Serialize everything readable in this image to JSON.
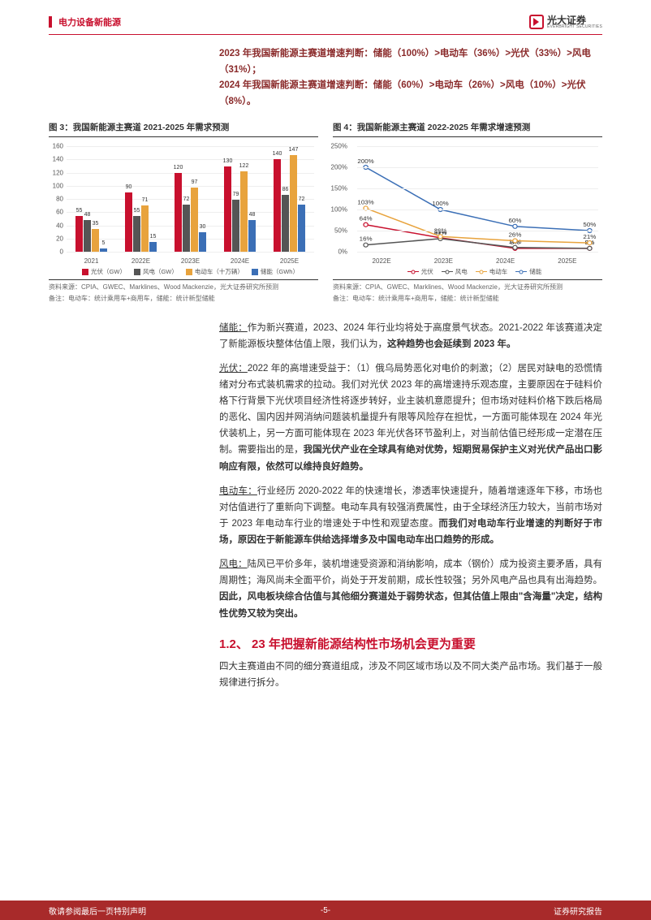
{
  "header": {
    "category": "电力设备新能源",
    "brand_cn": "光大证券",
    "brand_en": "EVERBRIGHT SECURITIES"
  },
  "intro": {
    "line1_prefix": "2023 年我国新能源主赛道增速判断：",
    "line1_body": "储能（100%）>电动车（36%）>光伏（33%）>风电（31%）；",
    "line2_prefix": "2024 年我国新能源主赛道增速判断：",
    "line2_body": "储能（60%）>电动车（26%）>风电（10%）>光伏（8%）。"
  },
  "chart3": {
    "title": "图 3：我国新能源主赛道 2021-2025 年需求预测",
    "type": "bar",
    "categories": [
      "2021",
      "2022E",
      "2023E",
      "2024E",
      "2025E"
    ],
    "ylim": [
      0,
      160
    ],
    "ytick_step": 20,
    "series": [
      {
        "name": "光伏（GW）",
        "color": "#c8102e",
        "values": [
          55,
          90,
          120,
          130,
          140
        ]
      },
      {
        "name": "风电（GW）",
        "color": "#555555",
        "values": [
          48,
          55,
          72,
          79,
          86
        ]
      },
      {
        "name": "电动车（十万辆）",
        "color": "#e8a33d",
        "values": [
          35,
          71,
          97,
          122,
          147
        ]
      },
      {
        "name": "储能（GWh）",
        "color": "#3b6fb6",
        "values": [
          5,
          15,
          30,
          48,
          72
        ]
      }
    ],
    "source": "资料来源：CPIA、GWEC、Marklines、Wood Mackenzie，光大证券研究所预测",
    "note": "备注：电动车：统计乘用车+商用车，储能：统计新型储能",
    "background_color": "#ffffff",
    "grid_color": "#eeeeee",
    "label_fontsize": 8
  },
  "chart4": {
    "title": "图 4：我国新能源主赛道 2022-2025 年需求增速预测",
    "type": "line",
    "categories": [
      "2022E",
      "2023E",
      "2024E",
      "2025E"
    ],
    "ylim": [
      0,
      250
    ],
    "ytick_step": 50,
    "ytick_format": "percent",
    "series": [
      {
        "name": "光伏",
        "color": "#c8102e",
        "values": [
          64,
          33,
          8,
          8
        ]
      },
      {
        "name": "风电",
        "color": "#555555",
        "values": [
          16,
          31,
          10,
          8
        ]
      },
      {
        "name": "电动车",
        "color": "#e8a33d",
        "values": [
          103,
          36,
          26,
          21
        ]
      },
      {
        "name": "储能",
        "color": "#3b6fb6",
        "values": [
          200,
          100,
          60,
          50
        ]
      }
    ],
    "source": "资料来源：CPIA、GWEC、Marklines、Wood Mackenzie，光大证券研究所预测",
    "note": "备注：电动车：统计乘用车+商用车，储能：统计新型储能",
    "background_color": "#ffffff",
    "grid_color": "#eeeeee",
    "label_fontsize": 8
  },
  "body": {
    "para1_head": "储能：",
    "para1": "作为新兴赛道，2023、2024 年行业均将处于高度景气状态。2021-2022 年该赛道决定了新能源板块整体估值上限，我们认为，",
    "para1_bold": "这种趋势也会延续到 2023 年。",
    "para2_head": "光伏：",
    "para2": "2022 年的高增速受益于：（1）俄乌局势恶化对电价的刺激；（2）居民对缺电的恐慌情绪对分布式装机需求的拉动。我们对光伏 2023 年的高增速持乐观态度，主要原因在于硅料价格下行背景下光伏项目经济性将逐步转好，业主装机意愿提升；但市场对硅料价格下跌后格局的恶化、国内因并网消纳问题装机量提升有限等风险存在担忧，一方面可能体现在 2024 年光伏装机上，另一方面可能体现在 2023 年光伏各环节盈利上，对当前估值已经形成一定潜在压制。需要指出的是，",
    "para2_bold": "我国光伏产业在全球具有绝对优势，短期贸易保护主义对光伏产品出口影响应有限，依然可以维持良好趋势。",
    "para3_head": "电动车：",
    "para3": "行业经历 2020-2022 年的快速增长，渗透率快速提升，随着增速逐年下移，市场也对估值进行了重新向下调整。电动车具有较强消费属性，由于全球经济压力较大，当前市场对于 2023 年电动车行业的增速处于中性和观望态度。",
    "para3_bold": "而我们对电动车行业增速的判断好于市场，原因在于新能源车供给选择增多及中国电动车出口趋势的形成。",
    "para4_head": "风电：",
    "para4": "陆风已平价多年，装机增速受资源和消纳影响，成本（钢价）成为投资主要矛盾，具有周期性；海风尚未全面平价，尚处于开发前期，成长性较强；另外风电产品也具有出海趋势。",
    "para4_bold": "因此，风电板块综合估值与其他细分赛道处于弱势状态，但其估值上限由\"含海量\"决定，结构性优势又较为突出。"
  },
  "section": {
    "heading": "1.2、 23 年把握新能源结构性市场机会更为重要",
    "para": "四大主赛道由不同的细分赛道组成，涉及不同区域市场以及不同大类产品市场。我们基于一般规律进行拆分。"
  },
  "footer": {
    "left": "敬请参阅最后一页特别声明",
    "center": "-5-",
    "right": "证券研究报告"
  }
}
